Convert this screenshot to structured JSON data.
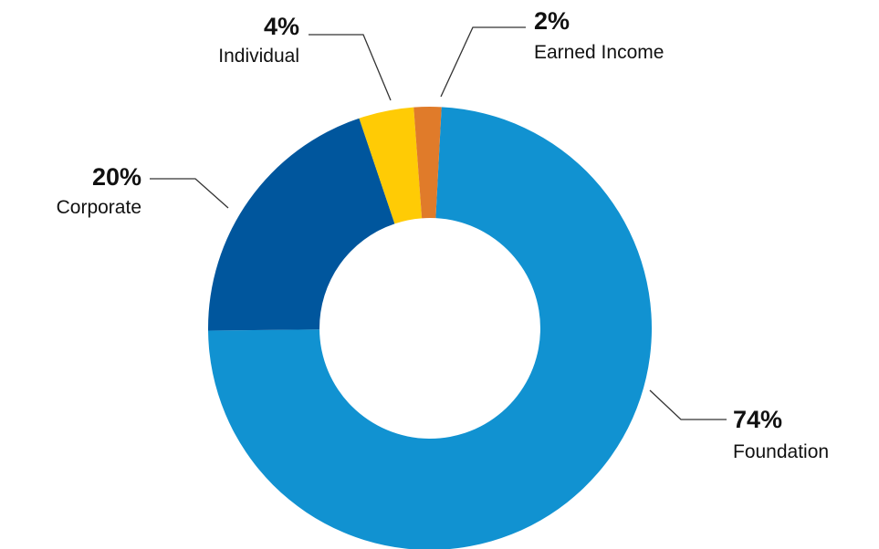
{
  "chart_data": {
    "type": "pie",
    "variant": "donut",
    "title": "",
    "start_angle_deg": 3,
    "direction": "clockwise",
    "slices": [
      {
        "key": "foundation",
        "label": "Foundation",
        "value": 74,
        "value_label": "74%",
        "color": "#1192d1"
      },
      {
        "key": "corporate",
        "label": "Corporate",
        "value": 20,
        "value_label": "20%",
        "color": "#00569d"
      },
      {
        "key": "individual",
        "label": "Individual",
        "value": 4,
        "value_label": "4%",
        "color": "#ffcb05"
      },
      {
        "key": "earned-income",
        "label": "Earned Income",
        "value": 2,
        "value_label": "2%",
        "color": "#e07b2a"
      }
    ],
    "legend": "none",
    "labels": "outside-with-leader-lines"
  }
}
